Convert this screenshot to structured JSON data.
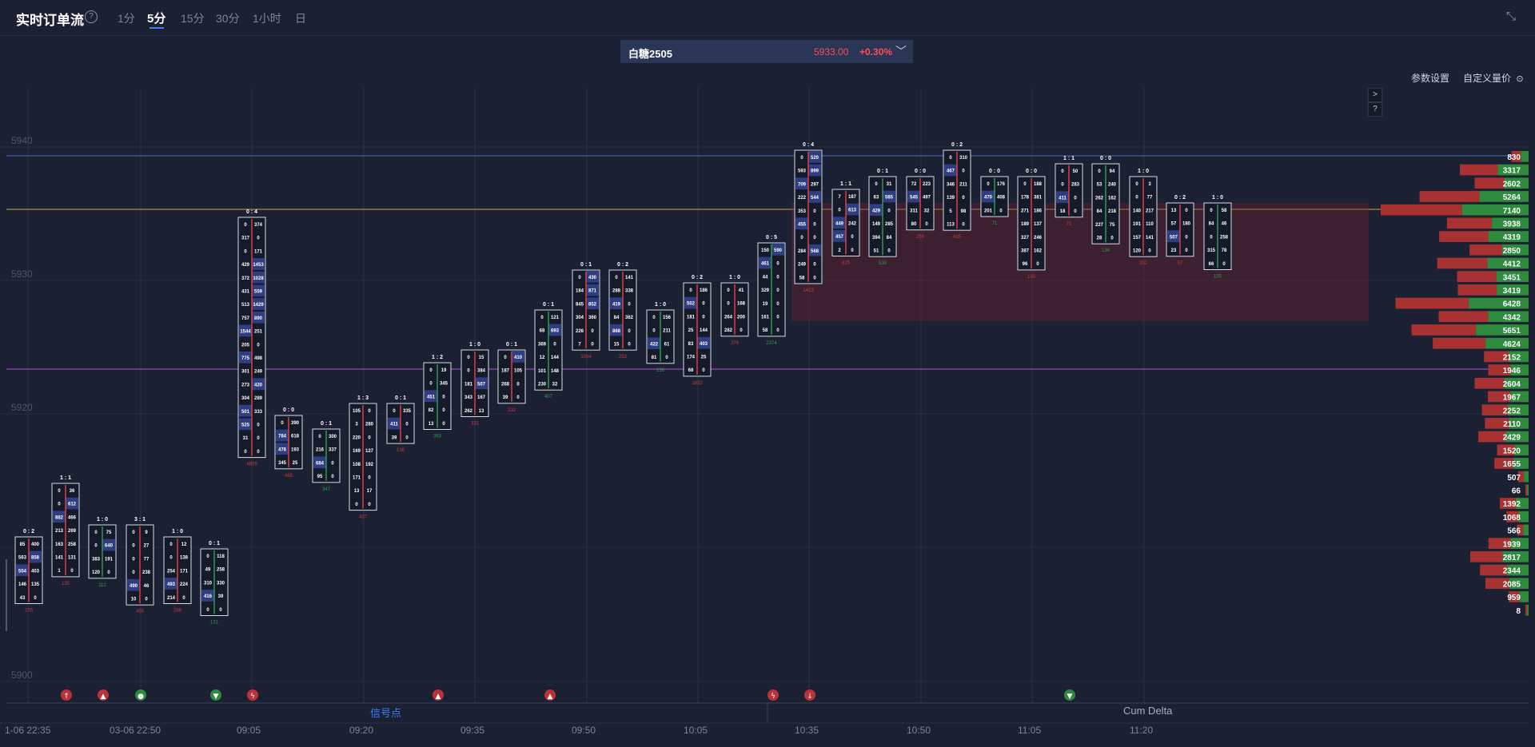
{
  "header": {
    "title": "实时订单流",
    "help": "?",
    "timeframes": [
      {
        "label": "1分",
        "active": false
      },
      {
        "label": "5分",
        "active": true
      },
      {
        "label": "15分",
        "active": false
      },
      {
        "label": "30分",
        "active": false
      },
      {
        "label": "1小时",
        "active": false
      },
      {
        "label": "日",
        "active": false
      }
    ],
    "collapse_icon": "collapse-arrows-icon"
  },
  "symbol": {
    "name": "白糖2505",
    "price": "5933.00",
    "change": "+0.30%",
    "icon": "chevron-down-icon"
  },
  "toolbar": {
    "params": "参数设置",
    "custom_price": "自定义量价",
    "settings_icon": "settings-icon"
  },
  "side_buttons": [
    ">",
    "?"
  ],
  "price_axis": {
    "labels": [
      "5940",
      "5930",
      "5920",
      "5900"
    ],
    "values": [
      5940,
      5930,
      5920,
      5900
    ]
  },
  "bottom_labels": {
    "signals": "信号点",
    "cum_delta": "Cum Delta"
  },
  "time_labels": [
    "1-06 22:35",
    "03-06 22:50",
    "09:05",
    "09:20",
    "09:35",
    "09:50",
    "10:05",
    "10:35",
    "10:50",
    "11:05",
    "11:20"
  ],
  "colors": {
    "bg": "#1b2133",
    "up": "#2e8a3c",
    "down": "#b8323a",
    "accent": "#3b7ff5",
    "line_yellow": "#c8a24b",
    "line_purple": "#b04fd8"
  },
  "volume_profile": [
    {
      "value": "830"
    },
    {
      "value": "3317"
    },
    {
      "value": "2602"
    },
    {
      "value": "5264"
    },
    {
      "value": "7140"
    },
    {
      "value": "3938"
    },
    {
      "value": "4319"
    },
    {
      "value": "2850"
    },
    {
      "value": "4412"
    },
    {
      "value": "3451"
    },
    {
      "value": "3419"
    },
    {
      "value": "6428"
    },
    {
      "value": "4342"
    },
    {
      "value": "5651"
    },
    {
      "value": "4624"
    },
    {
      "value": "2152"
    },
    {
      "value": "1946"
    },
    {
      "value": "2604"
    },
    {
      "value": "1967"
    },
    {
      "value": "2252"
    },
    {
      "value": "2110"
    },
    {
      "value": "2429"
    },
    {
      "value": "1520"
    },
    {
      "value": "1655"
    },
    {
      "value": "507"
    },
    {
      "value": "66"
    },
    {
      "value": "1392"
    },
    {
      "value": "1068"
    },
    {
      "value": "566"
    },
    {
      "value": "1939"
    },
    {
      "value": "2817"
    },
    {
      "value": "2344"
    },
    {
      "value": "2085"
    },
    {
      "value": "959"
    },
    {
      "value": "8"
    }
  ],
  "candles": [
    {
      "ratio": "0 : 2",
      "rows": [
        [
          "85",
          "400"
        ],
        [
          "563",
          "858"
        ],
        [
          "554",
          "403"
        ],
        [
          "146",
          "135"
        ],
        [
          "43",
          "0"
        ]
      ],
      "delta": "155"
    },
    {
      "ratio": "1 : 1",
      "rows": [
        [
          "0",
          "36"
        ],
        [
          "0",
          "612"
        ],
        [
          "882",
          "466"
        ],
        [
          "213",
          "269"
        ],
        [
          "163",
          "258"
        ],
        [
          "141",
          "131"
        ],
        [
          "1",
          "0"
        ]
      ],
      "delta": "135"
    },
    {
      "ratio": "1 : 0",
      "rows": [
        [
          "0",
          "75"
        ],
        [
          "0",
          "640"
        ],
        [
          "383",
          "191"
        ],
        [
          "120",
          "0"
        ]
      ],
      "delta": "112"
    },
    {
      "ratio": "3 : 1",
      "rows": [
        [
          "0",
          "9"
        ],
        [
          "0",
          "27"
        ],
        [
          "0",
          "77"
        ],
        [
          "0",
          "238"
        ],
        [
          "490",
          "46"
        ],
        [
          "10",
          "0"
        ]
      ],
      "delta": "455"
    },
    {
      "ratio": "1 : 0",
      "rows": [
        [
          "0",
          "12"
        ],
        [
          "0",
          "138"
        ],
        [
          "254",
          "171"
        ],
        [
          "493",
          "224"
        ],
        [
          "214",
          "0"
        ]
      ],
      "delta": "288"
    },
    {
      "ratio": "0 : 1",
      "rows": [
        [
          "0",
          "118"
        ],
        [
          "49",
          "258"
        ],
        [
          "310",
          "330"
        ],
        [
          "416",
          "39"
        ],
        [
          "0",
          "0"
        ]
      ],
      "delta": "131"
    },
    {
      "ratio": "0 : 4",
      "rows": [
        [
          "0",
          "374"
        ],
        [
          "317",
          "0"
        ],
        [
          "0",
          "171"
        ],
        [
          "429",
          "1453"
        ],
        [
          "372",
          "1028"
        ],
        [
          "431",
          "559"
        ],
        [
          "513",
          "1429"
        ],
        [
          "757",
          "890"
        ],
        [
          "1544",
          "251"
        ],
        [
          "205",
          "0"
        ],
        [
          "775",
          "498"
        ],
        [
          "301",
          "249"
        ],
        [
          "273",
          "420"
        ],
        [
          "304",
          "289"
        ],
        [
          "501",
          "333"
        ],
        [
          "525",
          "0"
        ],
        [
          "31",
          "0"
        ],
        [
          "0",
          "0"
        ]
      ],
      "delta": "4605"
    },
    {
      "ratio": "0 : 0",
      "rows": [
        [
          "0",
          "390"
        ],
        [
          "784",
          "618"
        ],
        [
          "478",
          "193"
        ],
        [
          "345",
          "25"
        ]
      ],
      "delta": "465"
    },
    {
      "ratio": "0 : 1",
      "rows": [
        [
          "0",
          "300"
        ],
        [
          "216",
          "337"
        ],
        [
          "684",
          "0"
        ],
        [
          "95",
          "0"
        ]
      ],
      "delta": "347"
    },
    {
      "ratio": "1 : 3",
      "rows": [
        [
          "105",
          "0"
        ],
        [
          "3",
          "280"
        ],
        [
          "220",
          "0"
        ],
        [
          "169",
          "127"
        ],
        [
          "108",
          "192"
        ],
        [
          "171",
          "0"
        ],
        [
          "13",
          "17"
        ],
        [
          "0",
          "0"
        ]
      ],
      "delta": "437"
    },
    {
      "ratio": "0 : 1",
      "rows": [
        [
          "0",
          "335"
        ],
        [
          "411",
          "0"
        ],
        [
          "39",
          "0"
        ]
      ],
      "delta": "136"
    },
    {
      "ratio": "1 : 2",
      "rows": [
        [
          "0",
          "19"
        ],
        [
          "0",
          "345"
        ],
        [
          "451",
          "0"
        ],
        [
          "82",
          "0"
        ],
        [
          "13",
          "0"
        ]
      ],
      "delta": "363"
    },
    {
      "ratio": "1 : 0",
      "rows": [
        [
          "0",
          "15"
        ],
        [
          "0",
          "384"
        ],
        [
          "181",
          "507"
        ],
        [
          "343",
          "167"
        ],
        [
          "262",
          "13"
        ]
      ],
      "delta": "331"
    },
    {
      "ratio": "0 : 1",
      "rows": [
        [
          "0",
          "410"
        ],
        [
          "187",
          "105"
        ],
        [
          "268",
          "0"
        ],
        [
          "39",
          "0"
        ]
      ],
      "delta": "332"
    },
    {
      "ratio": "0 : 1",
      "rows": [
        [
          "0",
          "121"
        ],
        [
          "68",
          "693"
        ],
        [
          "369",
          "0"
        ],
        [
          "12",
          "144"
        ],
        [
          "101",
          "148"
        ],
        [
          "230",
          "32"
        ]
      ],
      "delta": "407"
    },
    {
      "ratio": "0 : 1",
      "rows": [
        [
          "0",
          "430"
        ],
        [
          "184",
          "871"
        ],
        [
          "845",
          "852"
        ],
        [
          "304",
          "360"
        ],
        [
          "226",
          "0"
        ],
        [
          "7",
          "0"
        ]
      ],
      "delta": "1064"
    },
    {
      "ratio": "0 : 2",
      "rows": [
        [
          "0",
          "141"
        ],
        [
          "288",
          "338"
        ],
        [
          "419",
          "0"
        ],
        [
          "84",
          "362"
        ],
        [
          "868",
          "0"
        ],
        [
          "15",
          "0"
        ]
      ],
      "delta": "253"
    },
    {
      "ratio": "1 : 0",
      "rows": [
        [
          "0",
          "156"
        ],
        [
          "0",
          "211"
        ],
        [
          "422",
          "61"
        ],
        [
          "81",
          "0"
        ]
      ],
      "delta": "136"
    },
    {
      "ratio": "0 : 2",
      "rows": [
        [
          "0",
          "186"
        ],
        [
          "502",
          "0"
        ],
        [
          "181",
          "0"
        ],
        [
          "25",
          "144"
        ],
        [
          "83",
          "403"
        ],
        [
          "174",
          "25"
        ],
        [
          "68",
          "0"
        ]
      ],
      "delta": "1832"
    },
    {
      "ratio": "1 : 0",
      "rows": [
        [
          "0",
          "41"
        ],
        [
          "0",
          "168"
        ],
        [
          "264",
          "200"
        ],
        [
          "282",
          "0"
        ]
      ],
      "delta": "276"
    },
    {
      "ratio": "0 : 5",
      "rows": [
        [
          "150",
          "590"
        ],
        [
          "461",
          "0"
        ],
        [
          "44",
          "0"
        ],
        [
          "329",
          "0"
        ],
        [
          "19",
          "0"
        ],
        [
          "161",
          "0"
        ],
        [
          "58",
          "0"
        ]
      ],
      "delta": "2374"
    },
    {
      "ratio": "0 : 4",
      "rows": [
        [
          "0",
          "520"
        ],
        [
          "593",
          "899"
        ],
        [
          "709",
          "297"
        ],
        [
          "222",
          "544"
        ],
        [
          "353",
          "0"
        ],
        [
          "455",
          "0"
        ],
        [
          "0",
          "0"
        ],
        [
          "284",
          "568"
        ],
        [
          "249",
          "0"
        ],
        [
          "58",
          "0"
        ]
      ],
      "delta": "1423"
    },
    {
      "ratio": "1 : 1",
      "rows": [
        [
          "7",
          "187"
        ],
        [
          "0",
          "613"
        ],
        [
          "449",
          "242"
        ],
        [
          "457",
          "0"
        ],
        [
          "2",
          "0"
        ]
      ],
      "delta": "415"
    },
    {
      "ratio": "0 : 1",
      "rows": [
        [
          "0",
          "31"
        ],
        [
          "63",
          "585"
        ],
        [
          "429",
          "0"
        ],
        [
          "149",
          "285"
        ],
        [
          "394",
          "84"
        ],
        [
          "51",
          "0"
        ]
      ],
      "delta": "538"
    },
    {
      "ratio": "0 : 0",
      "rows": [
        [
          "72",
          "223"
        ],
        [
          "545",
          "497"
        ],
        [
          "311",
          "32"
        ],
        [
          "80",
          "0"
        ]
      ],
      "delta": "256"
    },
    {
      "ratio": "0 : 2",
      "rows": [
        [
          "0",
          "310"
        ],
        [
          "467",
          "0"
        ],
        [
          "346",
          "211"
        ],
        [
          "139",
          "0"
        ],
        [
          "5",
          "98"
        ],
        [
          "113",
          "0"
        ]
      ],
      "delta": "415"
    },
    {
      "ratio": "0 : 0",
      "rows": [
        [
          "0",
          "176"
        ],
        [
          "470",
          "408"
        ],
        [
          "201",
          "0"
        ]
      ],
      "delta": "71"
    },
    {
      "ratio": "0 : 0",
      "rows": [
        [
          "0",
          "188"
        ],
        [
          "178",
          "381"
        ],
        [
          "271",
          "186"
        ],
        [
          "189",
          "137"
        ],
        [
          "327",
          "246"
        ],
        [
          "387",
          "162"
        ],
        [
          "96",
          "0"
        ]
      ],
      "delta": "130"
    },
    {
      "ratio": "1 : 1",
      "rows": [
        [
          "0",
          "50"
        ],
        [
          "0",
          "283"
        ],
        [
          "411",
          "0"
        ],
        [
          "18",
          "0"
        ]
      ],
      "delta": "71"
    },
    {
      "ratio": "0 : 0",
      "rows": [
        [
          "0",
          "94"
        ],
        [
          "53",
          "240"
        ],
        [
          "262",
          "162"
        ],
        [
          "84",
          "218"
        ],
        [
          "227",
          "75"
        ],
        [
          "28",
          "0"
        ]
      ],
      "delta": "136"
    },
    {
      "ratio": "1 : 0",
      "rows": [
        [
          "0",
          "3"
        ],
        [
          "0",
          "77"
        ],
        [
          "140",
          "217"
        ],
        [
          "191",
          "110"
        ],
        [
          "157",
          "141"
        ],
        [
          "120",
          "0"
        ]
      ],
      "delta": "202"
    },
    {
      "ratio": "0 : 2",
      "rows": [
        [
          "13",
          "0"
        ],
        [
          "57",
          "180"
        ],
        [
          "507",
          "0"
        ],
        [
          "23",
          "0"
        ]
      ],
      "delta": "57"
    },
    {
      "ratio": "1 : 0",
      "rows": [
        [
          "0",
          "58"
        ],
        [
          "84",
          "46"
        ],
        [
          "0",
          "258"
        ],
        [
          "315",
          "78"
        ],
        [
          "66",
          "0"
        ]
      ],
      "delta": "155"
    }
  ],
  "signals": [
    {
      "icon": "up-arrow-icon"
    },
    {
      "icon": "up-triangle-icon"
    },
    {
      "icon": "circle-arrow-icon"
    },
    {
      "icon": "down-triangle-icon"
    },
    {
      "icon": "bolt-icon"
    },
    {
      "icon": "up-triangle-icon"
    },
    {
      "icon": "up-triangle-icon"
    },
    {
      "icon": "bolt-icon"
    },
    {
      "icon": "down-arrow-icon"
    },
    {
      "icon": "down-triangle-icon"
    }
  ]
}
